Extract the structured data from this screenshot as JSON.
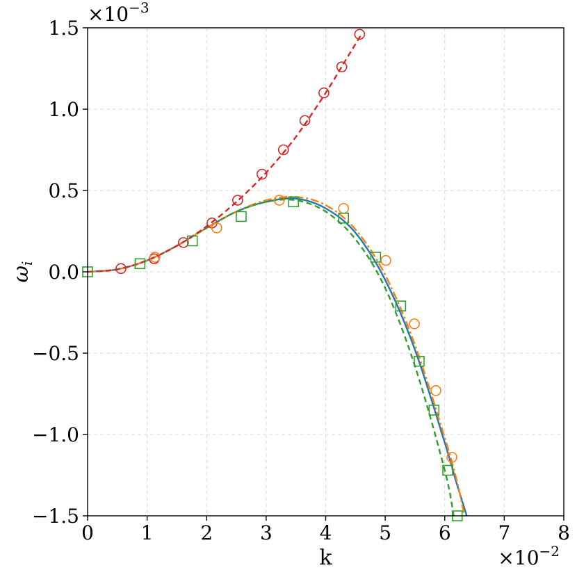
{
  "chart_data": {
    "type": "line",
    "xlabel": "k",
    "ylabel": "ω",
    "ylabel_sub": "i",
    "x_multiplier": "×10",
    "x_multiplier_exp": "−2",
    "y_multiplier": "×10",
    "y_multiplier_exp": "−3",
    "xlim": [
      0,
      8
    ],
    "ylim": [
      -1.5,
      1.5
    ],
    "xticks": [
      0,
      1,
      2,
      3,
      4,
      5,
      6,
      7,
      8
    ],
    "xtick_labels": [
      "0",
      "1",
      "2",
      "3",
      "4",
      "5",
      "6",
      "7",
      "8"
    ],
    "yticks": [
      -1.5,
      -1.0,
      -0.5,
      0.0,
      0.5,
      1.0,
      1.5
    ],
    "ytick_labels": [
      "−1.5",
      "−1.0",
      "−0.5",
      "0.0",
      "0.5",
      "1.0",
      "1.5"
    ],
    "grid": true,
    "colors": {
      "blue": "#1f77b4",
      "orange": "#ff7f0e",
      "green": "#2ca02c",
      "red": "#d62728"
    },
    "series": [
      {
        "style": "solid",
        "color": "#1f77b4",
        "x": [
          0,
          0.5,
          1.0,
          1.5,
          2.0,
          2.5,
          3.0,
          3.5,
          4.0,
          4.5,
          5.0,
          5.5,
          6.0,
          6.2,
          6.37
        ],
        "y": [
          0,
          0.015,
          0.07,
          0.16,
          0.27,
          0.37,
          0.43,
          0.45,
          0.39,
          0.24,
          -0.05,
          -0.48,
          -1.05,
          -1.3,
          -1.5
        ]
      },
      {
        "style": "dashdot",
        "color": "#ff7f0e",
        "x": [
          0,
          0.5,
          1.0,
          1.5,
          2.0,
          2.5,
          3.0,
          3.5,
          4.0,
          4.5,
          5.0,
          5.5,
          6.0,
          6.2,
          6.33
        ],
        "y": [
          0,
          0.015,
          0.07,
          0.16,
          0.27,
          0.37,
          0.44,
          0.46,
          0.41,
          0.26,
          -0.02,
          -0.45,
          -1.02,
          -1.28,
          -1.5
        ]
      },
      {
        "style": "dashed",
        "color": "#2ca02c",
        "x": [
          0,
          0.5,
          1.0,
          1.5,
          2.0,
          2.5,
          3.0,
          3.5,
          4.0,
          4.5,
          5.0,
          5.5,
          6.0,
          6.15
        ],
        "y": [
          0,
          0.015,
          0.07,
          0.16,
          0.27,
          0.37,
          0.43,
          0.44,
          0.37,
          0.2,
          -0.1,
          -0.58,
          -1.22,
          -1.5
        ]
      },
      {
        "style": "dashed",
        "color": "#d62728",
        "x": [
          0,
          0.5,
          1.0,
          1.5,
          2.0,
          2.5,
          3.0,
          3.5,
          4.0,
          4.3,
          4.6
        ],
        "y": [
          0,
          0.015,
          0.07,
          0.16,
          0.28,
          0.43,
          0.61,
          0.83,
          1.1,
          1.28,
          1.46
        ]
      },
      {
        "marker": "circle",
        "color": "#d62728",
        "x": [
          0.56,
          1.12,
          1.61,
          2.09,
          2.52,
          2.93,
          3.29,
          3.65,
          3.97,
          4.27,
          4.57
        ],
        "y": [
          0.02,
          0.08,
          0.18,
          0.3,
          0.44,
          0.6,
          0.75,
          0.93,
          1.1,
          1.26,
          1.46
        ]
      },
      {
        "marker": "circle",
        "color": "#ff7f0e",
        "x": [
          1.13,
          2.17,
          3.22,
          4.3,
          5.01,
          5.49,
          5.85,
          6.12
        ],
        "y": [
          0.09,
          0.27,
          0.44,
          0.39,
          0.07,
          -0.32,
          -0.73,
          -1.14
        ]
      },
      {
        "marker": "square",
        "color": "#2ca02c",
        "x": [
          0.0,
          0.88,
          1.76,
          2.58,
          3.46,
          4.3,
          4.84,
          5.26,
          5.57,
          5.82,
          6.05,
          6.21
        ],
        "y": [
          0.0,
          0.05,
          0.19,
          0.34,
          0.43,
          0.33,
          0.09,
          -0.21,
          -0.55,
          -0.85,
          -1.22,
          -1.5
        ]
      }
    ]
  }
}
